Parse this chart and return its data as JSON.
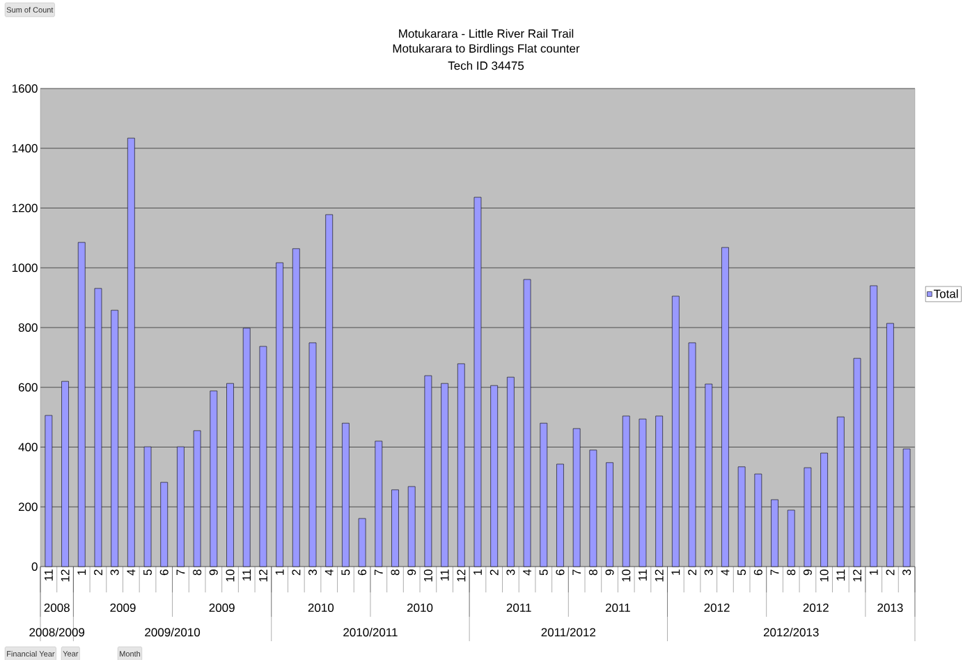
{
  "chart_data": {
    "type": "bar",
    "title": "Motukarara - Little River Rail Trail",
    "subtitle": "Motukarara to Birdlings Flat counter",
    "categories": [
      "11",
      "12",
      "1",
      "2",
      "3",
      "4",
      "5",
      "6",
      "7",
      "8",
      "9",
      "10",
      "11",
      "12",
      "1",
      "2",
      "3",
      "4",
      "5",
      "6",
      "7",
      "8",
      "9",
      "10",
      "11",
      "12",
      "1",
      "2",
      "3",
      "4",
      "5",
      "6",
      "7",
      "8",
      "9",
      "10",
      "11",
      "12",
      "1",
      "2",
      "3",
      "4",
      "5",
      "6",
      "7",
      "8",
      "9",
      "10",
      "11",
      "12",
      "1",
      "2",
      "3"
    ],
    "series": [
      {
        "name": "Total",
        "color": "#9999ff",
        "values": [
          506,
          620,
          1085,
          931,
          858,
          1434,
          401,
          282,
          401,
          455,
          588,
          613,
          798,
          737,
          1017,
          1064,
          749,
          1178,
          480,
          161,
          420,
          257,
          268,
          639,
          613,
          679,
          1236,
          606,
          634,
          961,
          480,
          343,
          462,
          390,
          348,
          504,
          494,
          504,
          905,
          749,
          611,
          1068,
          334,
          310,
          224,
          189,
          331,
          380,
          501,
          697,
          940,
          814,
          394
        ]
      }
    ],
    "ylim": [
      0,
      1600
    ],
    "yticks": [
      0,
      200,
      400,
      600,
      800,
      1000,
      1200,
      1400,
      1600
    ],
    "grid": "y",
    "legend": "right",
    "annotations": [
      "Tech ID 34475",
      "Sum of Count",
      "Financial Year",
      "Year",
      "Month",
      "2008",
      "2009",
      "2009",
      "2010",
      "2010",
      "2011",
      "2011",
      "2012",
      "2012",
      "2013",
      "2008/2009",
      "2009/2010",
      "2010/2011",
      "2011/2012",
      "2012/2013"
    ]
  }
}
